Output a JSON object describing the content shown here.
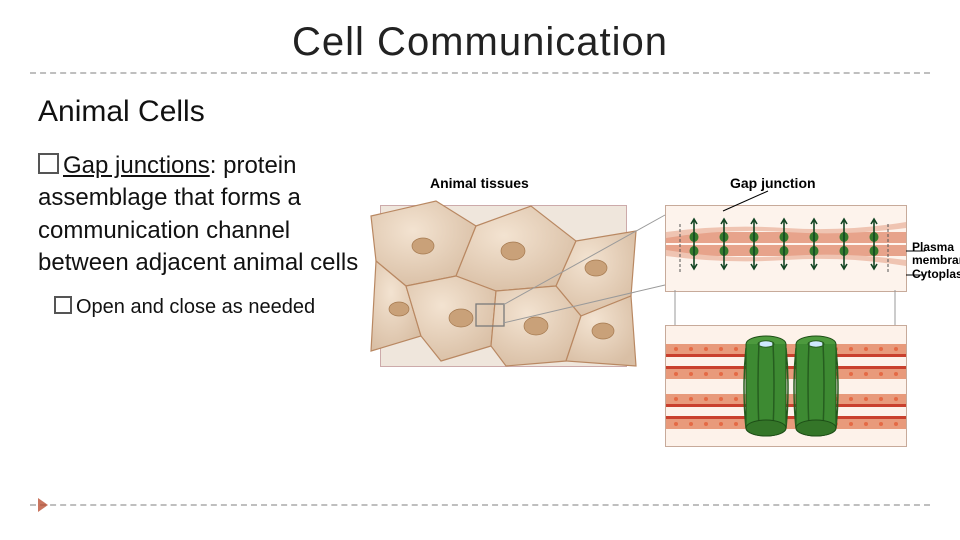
{
  "title": "Cell  Communication",
  "subtitle": "Animal Cells",
  "bullet": {
    "term": "Gap junctions",
    "rest": ": protein assemblage that forms a communication channel between adjacent animal cells"
  },
  "subbullet": "Open and close as needed",
  "figure": {
    "left_title": "Animal tissues",
    "right_title": "Gap junction",
    "labels": {
      "plasma": "Plasma\nmembranes",
      "cyto": "Cytoplasm"
    },
    "colors": {
      "cell_fill": "#ead7c4",
      "cell_alt": "#e2c9b2",
      "cell_stroke": "#b98862",
      "selector": "#7a7a7a",
      "membrane_top": "#e89a7b",
      "membrane_bot": "#c9402d",
      "connexon": "#3d8a32",
      "connexon_dark": "#265e1f",
      "pore": "#cfe8ff",
      "bg": "#fdf2ea"
    }
  },
  "style": {
    "title_color": "#262626",
    "accent": "#b7472a",
    "rule_color": "#bfbfbf"
  }
}
